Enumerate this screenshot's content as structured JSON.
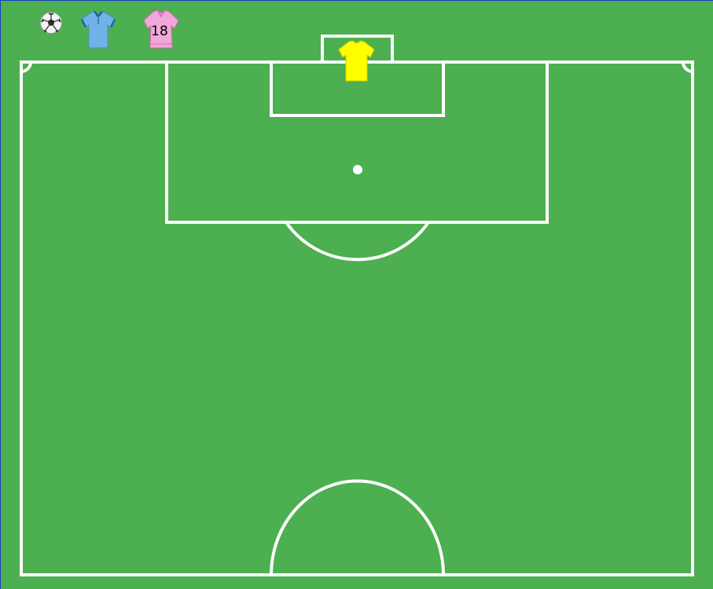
{
  "palette": {
    "pitch_green": "#4caf50",
    "line_white": "#ffffff",
    "frame_blue": "#1c3fbf"
  },
  "toolbar": {
    "ball_icon": "soccer-ball-icon",
    "blue_jersey_icon": "polo-shirt-icon",
    "pink_jersey_icon": "blouse-icon",
    "pink_jersey_number": "18"
  },
  "pitch": {
    "goalkeeper_icon": "t-shirt-icon"
  },
  "colors": {
    "blue_shirt": "#6fb3e8",
    "blue_collar": "#1f5f9e",
    "pink_shirt": "#f1a7d8",
    "pink_trim": "#d96cb8",
    "yellow_shirt": "#ffff00",
    "yellow_trim": "#d8c800"
  }
}
